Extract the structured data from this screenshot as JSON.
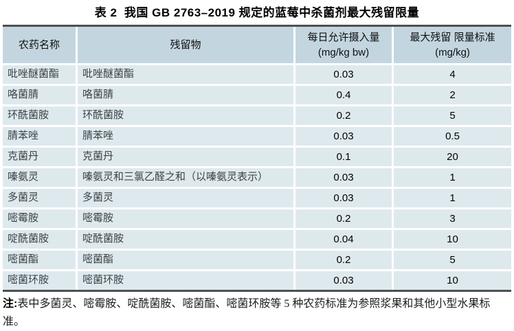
{
  "title": "表 2  我国 GB 2763–2019 规定的蓝莓中杀菌剂最大残留限量",
  "table": {
    "headers": {
      "col1": "农药名称",
      "col2": "残留物",
      "col3_line1": "每日允许摄入量",
      "col3_line2": "(mg/kg bw)",
      "col4_line1": "最大残留 限量标准",
      "col4_line2": "(mg/kg)"
    },
    "rows": [
      [
        "吡唑醚菌酯",
        "吡唑醚菌酯",
        "0.03",
        "4"
      ],
      [
        "咯菌腈",
        "咯菌腈",
        "0.4",
        "2"
      ],
      [
        "环酰菌胺",
        "环酰菌胺",
        "0.2",
        "5"
      ],
      [
        "腈苯唑",
        "腈苯唑",
        "0.03",
        "0.5"
      ],
      [
        "克菌丹",
        "克菌丹",
        "0.1",
        "20"
      ],
      [
        "嗪氨灵",
        "嗪氨灵和三氯乙醛之和（以嗪氨灵表示）",
        "0.03",
        "1"
      ],
      [
        "多菌灵",
        "多菌灵",
        "0.03",
        "1"
      ],
      [
        "嘧霉胺",
        "嘧霉胺",
        "0.2",
        "3"
      ],
      [
        "啶酰菌胺",
        "啶酰菌胺",
        "0.04",
        "10"
      ],
      [
        "嘧菌酯",
        "嘧菌酯",
        "0.2",
        "5"
      ],
      [
        "嘧菌环胺",
        "嘧菌环胺",
        "0.03",
        "10"
      ]
    ]
  },
  "note": {
    "prefix": "注:",
    "text": "表中多菌灵、嘧霉胺、啶酰菌胺、嘧菌酯、嘧菌环胺等 5 种农药标准为参照浆果和其他小型水果标准。"
  },
  "colors": {
    "header_bg": "#c3d6e0",
    "row_bg": "#dee9ee",
    "border": "#4f4f4f"
  }
}
